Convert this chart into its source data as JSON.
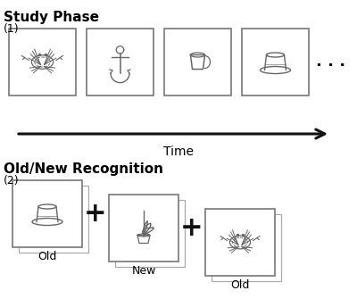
{
  "bg_color": "#ffffff",
  "title1": "Study Phase",
  "title2": "Old/New Recognition",
  "label1": "(1)",
  "label2": "(2)",
  "time_label": "Time",
  "old_label1": "Old",
  "new_label": "New",
  "old_label2": "Old",
  "box_edge_dark": "#555555",
  "box_edge_light": "#aaaaaa",
  "arrow_color": "#111111",
  "text_color": "#000000",
  "plus_color": "#111111",
  "line_color": "#666666"
}
